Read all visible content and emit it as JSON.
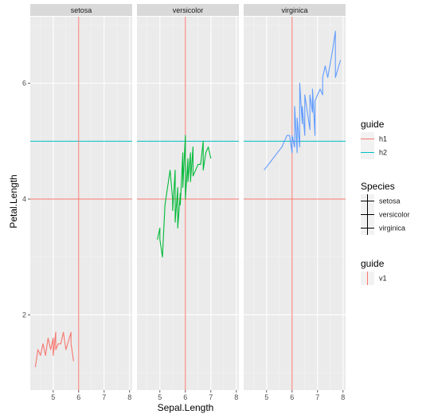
{
  "chart_data": {
    "type": "line",
    "xlabel": "Sepal.Length",
    "ylabel": "Petal.Length",
    "xlim": [
      4.1,
      8.1
    ],
    "ylim": [
      0.7,
      7.15
    ],
    "x_ticks": [
      5,
      6,
      7,
      8
    ],
    "y_ticks": [
      2,
      4,
      6
    ],
    "grid": true,
    "colors": {
      "setosa": "#F8766D",
      "versicolor": "#00BA38",
      "virginica": "#619CFF",
      "h1": "#F8766D",
      "h2": "#00BFC4",
      "v1": "#F8766D",
      "species_key": "#000000"
    },
    "reference_lines": [
      {
        "guide": "h1",
        "orientation": "horizontal",
        "value": 4
      },
      {
        "guide": "h2",
        "orientation": "horizontal",
        "value": 5
      },
      {
        "guide": "v1",
        "orientation": "vertical",
        "value": 6
      }
    ],
    "panels": [
      {
        "name": "setosa",
        "series": [
          {
            "x": 4.3,
            "y": 1.1
          },
          {
            "x": 4.4,
            "y": 1.4
          },
          {
            "x": 4.5,
            "y": 1.3
          },
          {
            "x": 4.6,
            "y": 1.5
          },
          {
            "x": 4.7,
            "y": 1.3
          },
          {
            "x": 4.8,
            "y": 1.6
          },
          {
            "x": 4.9,
            "y": 1.4
          },
          {
            "x": 5.0,
            "y": 1.6
          },
          {
            "x": 5.0,
            "y": 1.3
          },
          {
            "x": 5.1,
            "y": 1.7
          },
          {
            "x": 5.1,
            "y": 1.4
          },
          {
            "x": 5.2,
            "y": 1.5
          },
          {
            "x": 5.3,
            "y": 1.5
          },
          {
            "x": 5.4,
            "y": 1.7
          },
          {
            "x": 5.5,
            "y": 1.4
          },
          {
            "x": 5.7,
            "y": 1.7
          },
          {
            "x": 5.7,
            "y": 1.5
          },
          {
            "x": 5.8,
            "y": 1.2
          }
        ]
      },
      {
        "name": "versicolor",
        "series": [
          {
            "x": 4.9,
            "y": 3.3
          },
          {
            "x": 5.0,
            "y": 3.5
          },
          {
            "x": 5.0,
            "y": 3.3
          },
          {
            "x": 5.1,
            "y": 3.0
          },
          {
            "x": 5.2,
            "y": 3.9
          },
          {
            "x": 5.4,
            "y": 4.5
          },
          {
            "x": 5.5,
            "y": 4.0
          },
          {
            "x": 5.5,
            "y": 3.8
          },
          {
            "x": 5.6,
            "y": 4.5
          },
          {
            "x": 5.6,
            "y": 3.6
          },
          {
            "x": 5.7,
            "y": 4.2
          },
          {
            "x": 5.7,
            "y": 3.5
          },
          {
            "x": 5.8,
            "y": 4.1
          },
          {
            "x": 5.8,
            "y": 3.9
          },
          {
            "x": 5.9,
            "y": 4.8
          },
          {
            "x": 5.9,
            "y": 4.2
          },
          {
            "x": 6.0,
            "y": 5.1
          },
          {
            "x": 6.0,
            "y": 4.0
          },
          {
            "x": 6.1,
            "y": 4.7
          },
          {
            "x": 6.1,
            "y": 4.3
          },
          {
            "x": 6.2,
            "y": 4.8
          },
          {
            "x": 6.2,
            "y": 4.3
          },
          {
            "x": 6.3,
            "y": 4.9
          },
          {
            "x": 6.3,
            "y": 4.4
          },
          {
            "x": 6.4,
            "y": 4.5
          },
          {
            "x": 6.5,
            "y": 4.6
          },
          {
            "x": 6.6,
            "y": 4.6
          },
          {
            "x": 6.7,
            "y": 5.0
          },
          {
            "x": 6.7,
            "y": 4.5
          },
          {
            "x": 6.8,
            "y": 4.8
          },
          {
            "x": 6.9,
            "y": 4.9
          },
          {
            "x": 7.0,
            "y": 4.7
          }
        ]
      },
      {
        "name": "virginica",
        "series": [
          {
            "x": 4.9,
            "y": 4.5
          },
          {
            "x": 5.6,
            "y": 4.9
          },
          {
            "x": 5.7,
            "y": 5.0
          },
          {
            "x": 5.8,
            "y": 5.1
          },
          {
            "x": 5.9,
            "y": 5.1
          },
          {
            "x": 6.0,
            "y": 4.8
          },
          {
            "x": 6.0,
            "y": 5.1
          },
          {
            "x": 6.1,
            "y": 4.9
          },
          {
            "x": 6.1,
            "y": 5.6
          },
          {
            "x": 6.2,
            "y": 4.8
          },
          {
            "x": 6.2,
            "y": 5.4
          },
          {
            "x": 6.3,
            "y": 4.9
          },
          {
            "x": 6.3,
            "y": 6.0
          },
          {
            "x": 6.4,
            "y": 5.3
          },
          {
            "x": 6.4,
            "y": 5.6
          },
          {
            "x": 6.5,
            "y": 5.1
          },
          {
            "x": 6.5,
            "y": 5.8
          },
          {
            "x": 6.7,
            "y": 5.2
          },
          {
            "x": 6.7,
            "y": 5.8
          },
          {
            "x": 6.8,
            "y": 5.5
          },
          {
            "x": 6.8,
            "y": 5.9
          },
          {
            "x": 6.9,
            "y": 5.1
          },
          {
            "x": 6.9,
            "y": 5.7
          },
          {
            "x": 7.1,
            "y": 5.9
          },
          {
            "x": 7.2,
            "y": 5.8
          },
          {
            "x": 7.2,
            "y": 6.1
          },
          {
            "x": 7.3,
            "y": 6.3
          },
          {
            "x": 7.4,
            "y": 6.1
          },
          {
            "x": 7.6,
            "y": 6.6
          },
          {
            "x": 7.7,
            "y": 6.9
          },
          {
            "x": 7.7,
            "y": 6.1
          },
          {
            "x": 7.9,
            "y": 6.4
          }
        ]
      }
    ],
    "legends": [
      {
        "title": "guide",
        "entries": [
          "h1",
          "h2"
        ],
        "key_type": "hline",
        "key_colors": [
          "#F8766D",
          "#00BFC4"
        ]
      },
      {
        "title": "Species",
        "entries": [
          "setosa",
          "versicolor",
          "virginica"
        ],
        "key_type": "cross",
        "key_colors": [
          "#000000",
          "#000000",
          "#000000"
        ]
      },
      {
        "title": "guide",
        "entries": [
          "v1"
        ],
        "key_type": "vline",
        "key_colors": [
          "#F8766D"
        ]
      }
    ]
  }
}
